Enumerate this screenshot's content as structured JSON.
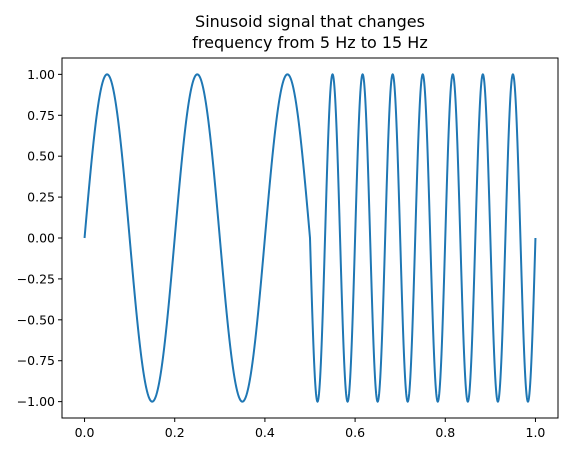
{
  "chart_data": {
    "type": "line",
    "title_lines": [
      "Sinusoid signal that changes",
      "frequency from 5 Hz to 15 Hz"
    ],
    "xlabel": "",
    "ylabel": "",
    "xlim": [
      -0.05,
      1.05
    ],
    "ylim": [
      -1.1,
      1.1
    ],
    "x_ticks": [
      0.0,
      0.2,
      0.4,
      0.6,
      0.8,
      1.0
    ],
    "x_tick_labels": [
      "0.0",
      "0.2",
      "0.4",
      "0.6",
      "0.8",
      "1.0"
    ],
    "y_ticks": [
      1.0,
      0.75,
      0.5,
      0.25,
      0.0,
      -0.25,
      -0.5,
      -0.75,
      -1.0
    ],
    "y_tick_labels": [
      "1.00",
      "0.75",
      "0.50",
      "0.25",
      "0.00",
      "−0.25",
      "−0.50",
      "−0.75",
      "−1.00"
    ],
    "grid": false,
    "series": [
      {
        "color": "#1f77b4",
        "segments": [
          {
            "x_start": 0.0,
            "x_end": 0.5,
            "frequency_hz": 5
          },
          {
            "x_start": 0.5,
            "x_end": 1.0,
            "frequency_hz": 15
          }
        ],
        "amplitude": 1.0
      }
    ]
  }
}
